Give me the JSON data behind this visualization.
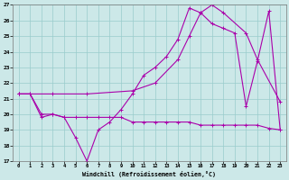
{
  "xlabel": "Windchill (Refroidissement éolien,°C)",
  "bg_color": "#cce8e8",
  "grid_color": "#99cccc",
  "line_color": "#aa00aa",
  "xlim": [
    -0.5,
    23.5
  ],
  "ylim": [
    17,
    27
  ],
  "yticks": [
    17,
    18,
    19,
    20,
    21,
    22,
    23,
    24,
    25,
    26,
    27
  ],
  "xticks": [
    0,
    1,
    2,
    3,
    4,
    5,
    6,
    7,
    8,
    9,
    10,
    11,
    12,
    13,
    14,
    15,
    16,
    17,
    18,
    19,
    20,
    21,
    22,
    23
  ],
  "line1_x": [
    0,
    1,
    2,
    3,
    4,
    5,
    6,
    7,
    8,
    9,
    10,
    11,
    12,
    13,
    14,
    15,
    16,
    17,
    18,
    19,
    20,
    21,
    22,
    23
  ],
  "line1_y": [
    21.3,
    21.3,
    19.8,
    20.0,
    19.8,
    18.5,
    17.0,
    19.0,
    19.5,
    20.3,
    21.3,
    22.5,
    23.0,
    23.7,
    24.8,
    26.8,
    26.5,
    25.8,
    25.5,
    25.2,
    20.5,
    23.4,
    26.6,
    19.0
  ],
  "line2_x": [
    0,
    1,
    2,
    3,
    4,
    5,
    6,
    7,
    8,
    9,
    10,
    11,
    12,
    13,
    14,
    15,
    16,
    17,
    18,
    19,
    20,
    21,
    22,
    23
  ],
  "line2_y": [
    21.3,
    21.3,
    20.0,
    20.0,
    19.8,
    19.8,
    19.8,
    19.8,
    19.8,
    19.8,
    19.5,
    19.5,
    19.5,
    19.5,
    19.5,
    19.5,
    19.3,
    19.3,
    19.3,
    19.3,
    19.3,
    19.3,
    19.1,
    19.0
  ],
  "line3_x": [
    0,
    3,
    6,
    10,
    12,
    14,
    15,
    16,
    17,
    18,
    20,
    21,
    23
  ],
  "line3_y": [
    21.3,
    21.3,
    21.3,
    21.5,
    22.0,
    23.5,
    25.0,
    26.5,
    27.0,
    26.5,
    25.2,
    23.5,
    20.8
  ]
}
